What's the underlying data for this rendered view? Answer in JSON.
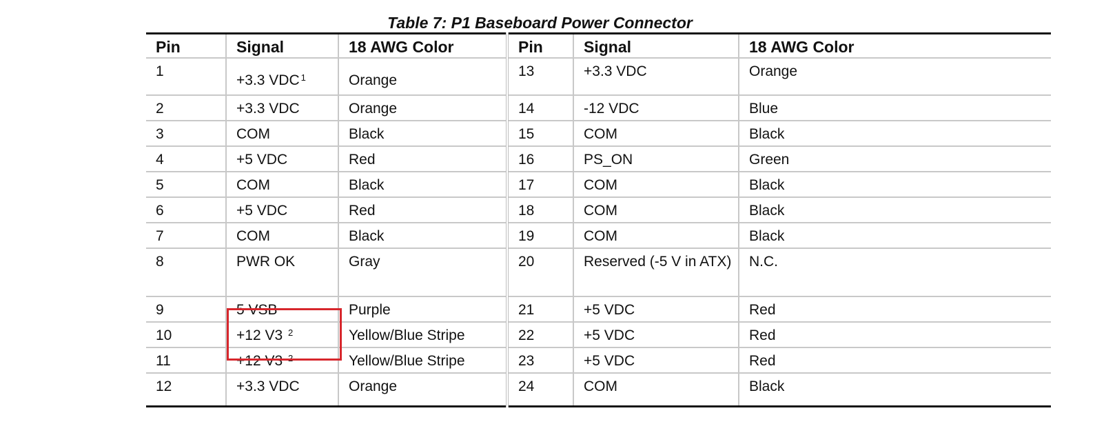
{
  "title": "Table 7:  P1 Baseboard Power Connector",
  "headers": [
    "Pin",
    "Signal",
    "18 AWG Color",
    "Pin",
    "Signal",
    "18 AWG Color"
  ],
  "rows": [
    {
      "pin": "1",
      "signal": "+3.3 VDC",
      "sup": "1",
      "color": "Orange",
      "pin2": "13",
      "signal2": "+3.3 VDC",
      "color2": "Orange"
    },
    {
      "pin": "2",
      "signal": "+3.3 VDC",
      "sup": "",
      "color": "Orange",
      "pin2": "14",
      "signal2": "-12 VDC",
      "color2": "Blue"
    },
    {
      "pin": "3",
      "signal": "COM",
      "sup": "",
      "color": "Black",
      "pin2": "15",
      "signal2": "COM",
      "color2": "Black"
    },
    {
      "pin": "4",
      "signal": "+5 VDC",
      "sup": "",
      "color": "Red",
      "pin2": "16",
      "signal2": "PS_ON",
      "color2": "Green"
    },
    {
      "pin": "5",
      "signal": "COM",
      "sup": "",
      "color": "Black",
      "pin2": "17",
      "signal2": "COM",
      "color2": "Black"
    },
    {
      "pin": "6",
      "signal": "+5 VDC",
      "sup": "",
      "color": "Red",
      "pin2": "18",
      "signal2": "COM",
      "color2": "Black"
    },
    {
      "pin": "7",
      "signal": "COM",
      "sup": "",
      "color": "Black",
      "pin2": "19",
      "signal2": "COM",
      "color2": "Black"
    },
    {
      "pin": "8",
      "signal": "PWR OK",
      "sup": "",
      "color": "Gray",
      "pin2": "20",
      "signal2": "Reserved (-5 V in ATX)",
      "color2": "N.C."
    },
    {
      "pin": "9",
      "signal": "5 VSB",
      "sup": "",
      "color": "Purple",
      "pin2": "21",
      "signal2": "+5 VDC",
      "color2": "Red"
    },
    {
      "pin": "10",
      "signal": "+12 V3 ",
      "sup": "2",
      "color": "Yellow/Blue Stripe",
      "pin2": "22",
      "signal2": "+5 VDC",
      "color2": "Red"
    },
    {
      "pin": "11",
      "signal": "+12 V3 ",
      "sup": "2",
      "color": "Yellow/Blue Stripe",
      "pin2": "23",
      "signal2": "+5 VDC",
      "color2": "Red"
    },
    {
      "pin": "12",
      "signal": "+3.3 VDC",
      "sup": "",
      "color": "Orange",
      "pin2": "24",
      "signal2": "COM",
      "color2": "Black"
    }
  ],
  "highlight_color": "#d7262c"
}
